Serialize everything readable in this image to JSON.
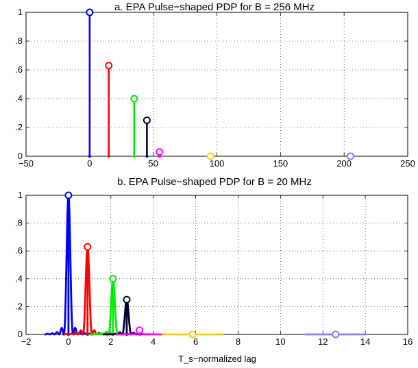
{
  "chart_data": [
    {
      "type": "line",
      "title": "a. EPA Pulse−shaped PDP for B = 256 MHz",
      "xlabel": "",
      "ylabel": "",
      "xlim": [
        -50,
        250
      ],
      "ylim": [
        0,
        1
      ],
      "grid": true,
      "xticks": [
        "−50",
        "0",
        "50",
        "100",
        "150",
        "200",
        "250"
      ],
      "xtick_values": [
        -50,
        0,
        50,
        100,
        150,
        200,
        250
      ],
      "yticks": [
        "0",
        ".2",
        ".4",
        ".6",
        ".8",
        "1"
      ],
      "ytick_values": [
        0,
        0.2,
        0.4,
        0.6,
        0.8,
        1
      ],
      "paths": [
        {
          "color": "#0000ff",
          "delay": 0,
          "power": 1.0
        },
        {
          "color": "#ff0000",
          "delay": 15,
          "power": 0.63
        },
        {
          "color": "#00ee00",
          "delay": 35,
          "power": 0.4
        },
        {
          "color": "#000033",
          "delay": 45,
          "power": 0.25
        },
        {
          "color": "#ff00ff",
          "delay": 55,
          "power": 0.03
        },
        {
          "color": "#ffcc00",
          "delay": 95,
          "power": 0.0
        },
        {
          "color": "#8080ff",
          "delay": 205,
          "power": 0.0
        }
      ]
    },
    {
      "type": "line",
      "title": "b. EPA Pulse−shaped PDP for B = 20 MHz",
      "xlabel": "T_s−normalized lag",
      "ylabel": "",
      "xlim": [
        -2,
        16
      ],
      "ylim": [
        0,
        1
      ],
      "grid": true,
      "xticks": [
        "−2",
        "0",
        "2",
        "4",
        "6",
        "8",
        "10",
        "12",
        "14",
        "16"
      ],
      "xtick_values": [
        -2,
        0,
        2,
        4,
        6,
        8,
        10,
        12,
        14,
        16
      ],
      "yticks": [
        "0",
        ".2",
        ".4",
        ".6",
        ".8",
        "1"
      ],
      "ytick_values": [
        0,
        0.2,
        0.4,
        0.6,
        0.8,
        1
      ],
      "paths": [
        {
          "color": "#0000ff",
          "delay": 0,
          "power": 1.0
        },
        {
          "color": "#ff0000",
          "delay": 0.9,
          "power": 0.63
        },
        {
          "color": "#00ee00",
          "delay": 2.1,
          "power": 0.4
        },
        {
          "color": "#000033",
          "delay": 2.75,
          "power": 0.25
        },
        {
          "color": "#ff00ff",
          "delay": 3.35,
          "power": 0.03
        },
        {
          "color": "#ffcc00",
          "delay": 5.85,
          "power": 0.0
        },
        {
          "color": "#8080ff",
          "delay": 12.6,
          "power": 0.0
        }
      ]
    }
  ]
}
